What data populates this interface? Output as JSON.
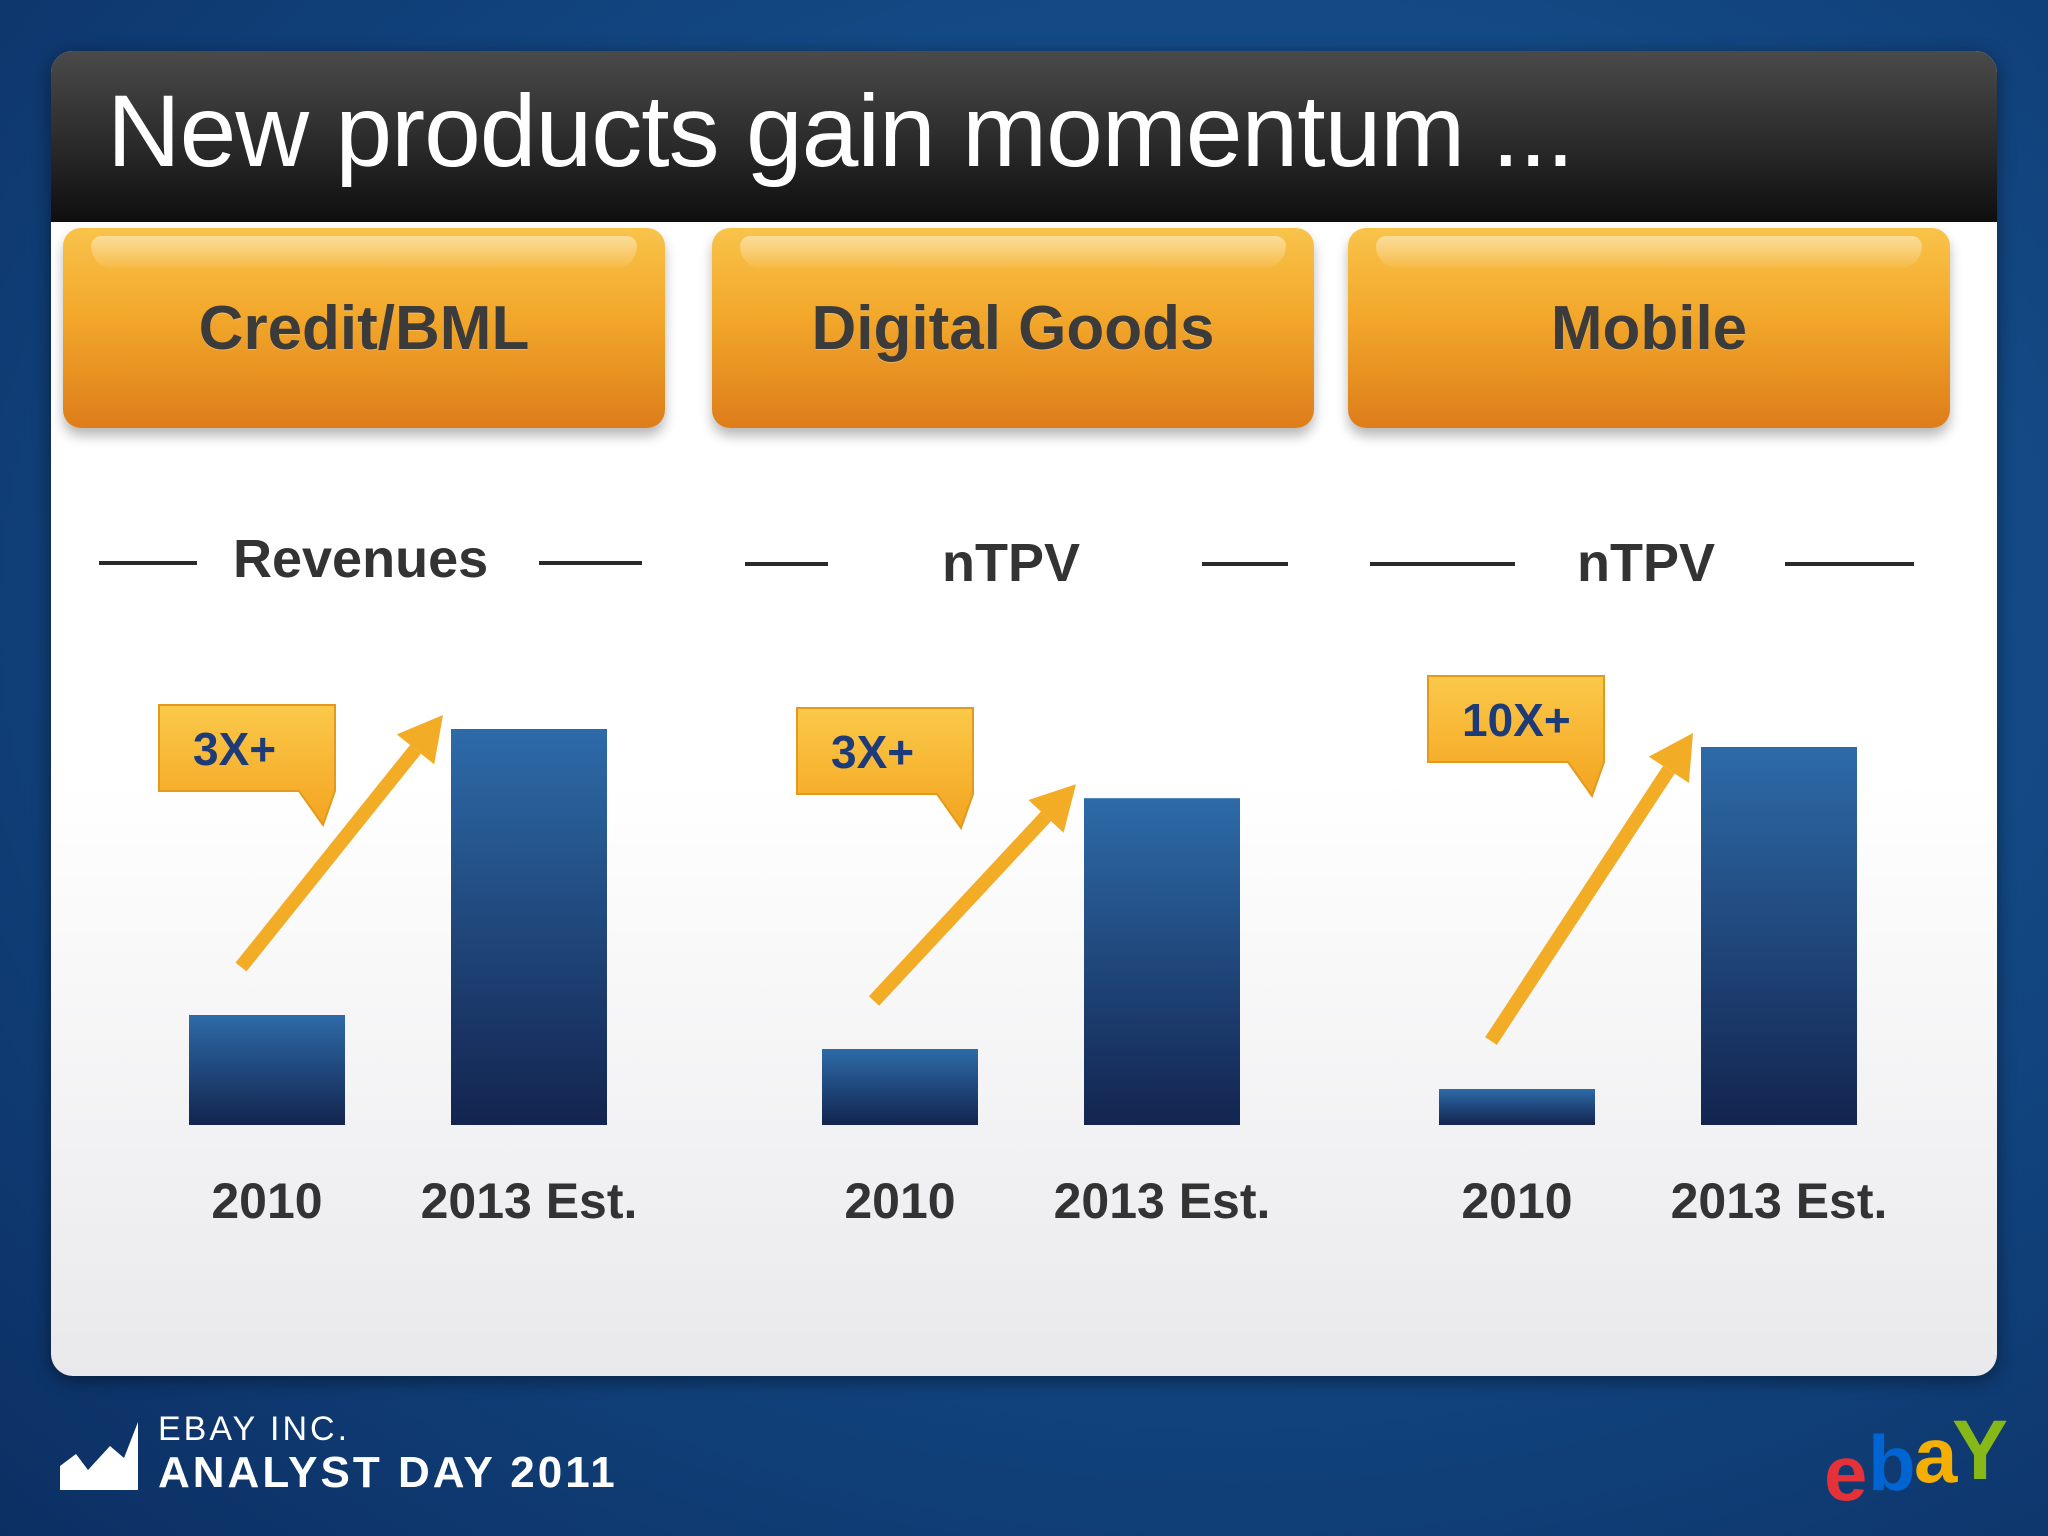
{
  "slide": {
    "title": "New products gain momentum ..."
  },
  "products": [
    {
      "name": "Credit/BML",
      "metric": "Revenues",
      "multiplier": "3X+"
    },
    {
      "name": "Digital Goods",
      "metric": "nTPV",
      "multiplier": "3X+"
    },
    {
      "name": "Mobile",
      "metric": "nTPV",
      "multiplier": "10X+"
    }
  ],
  "chart_data": [
    {
      "type": "bar",
      "title": "Credit/BML",
      "ylabel": "Revenues",
      "categories": [
        "2010",
        "2013 Est."
      ],
      "values": [
        1,
        3.6
      ],
      "annotation": "3X+"
    },
    {
      "type": "bar",
      "title": "Digital Goods",
      "ylabel": "nTPV",
      "categories": [
        "2010",
        "2013 Est."
      ],
      "values": [
        1,
        4.3
      ],
      "annotation": "3X+"
    },
    {
      "type": "bar",
      "title": "Mobile",
      "ylabel": "nTPV",
      "categories": [
        "2010",
        "2013 Est."
      ],
      "values": [
        1,
        10.5
      ],
      "annotation": "10X+"
    }
  ],
  "footer": {
    "company": "EBAY INC.",
    "event": "ANALYST DAY 2011",
    "brand_letters": [
      "e",
      "b",
      "a",
      "Y"
    ]
  },
  "colors": {
    "bar_top": "#2d6ba8",
    "bar_bottom": "#13244f",
    "arrow": "#f2ac26",
    "callout": "#f7b52c",
    "callout_text": "#1d3b78",
    "brand": [
      "#e53238",
      "#0064d2",
      "#f5af02",
      "#86b817"
    ]
  }
}
